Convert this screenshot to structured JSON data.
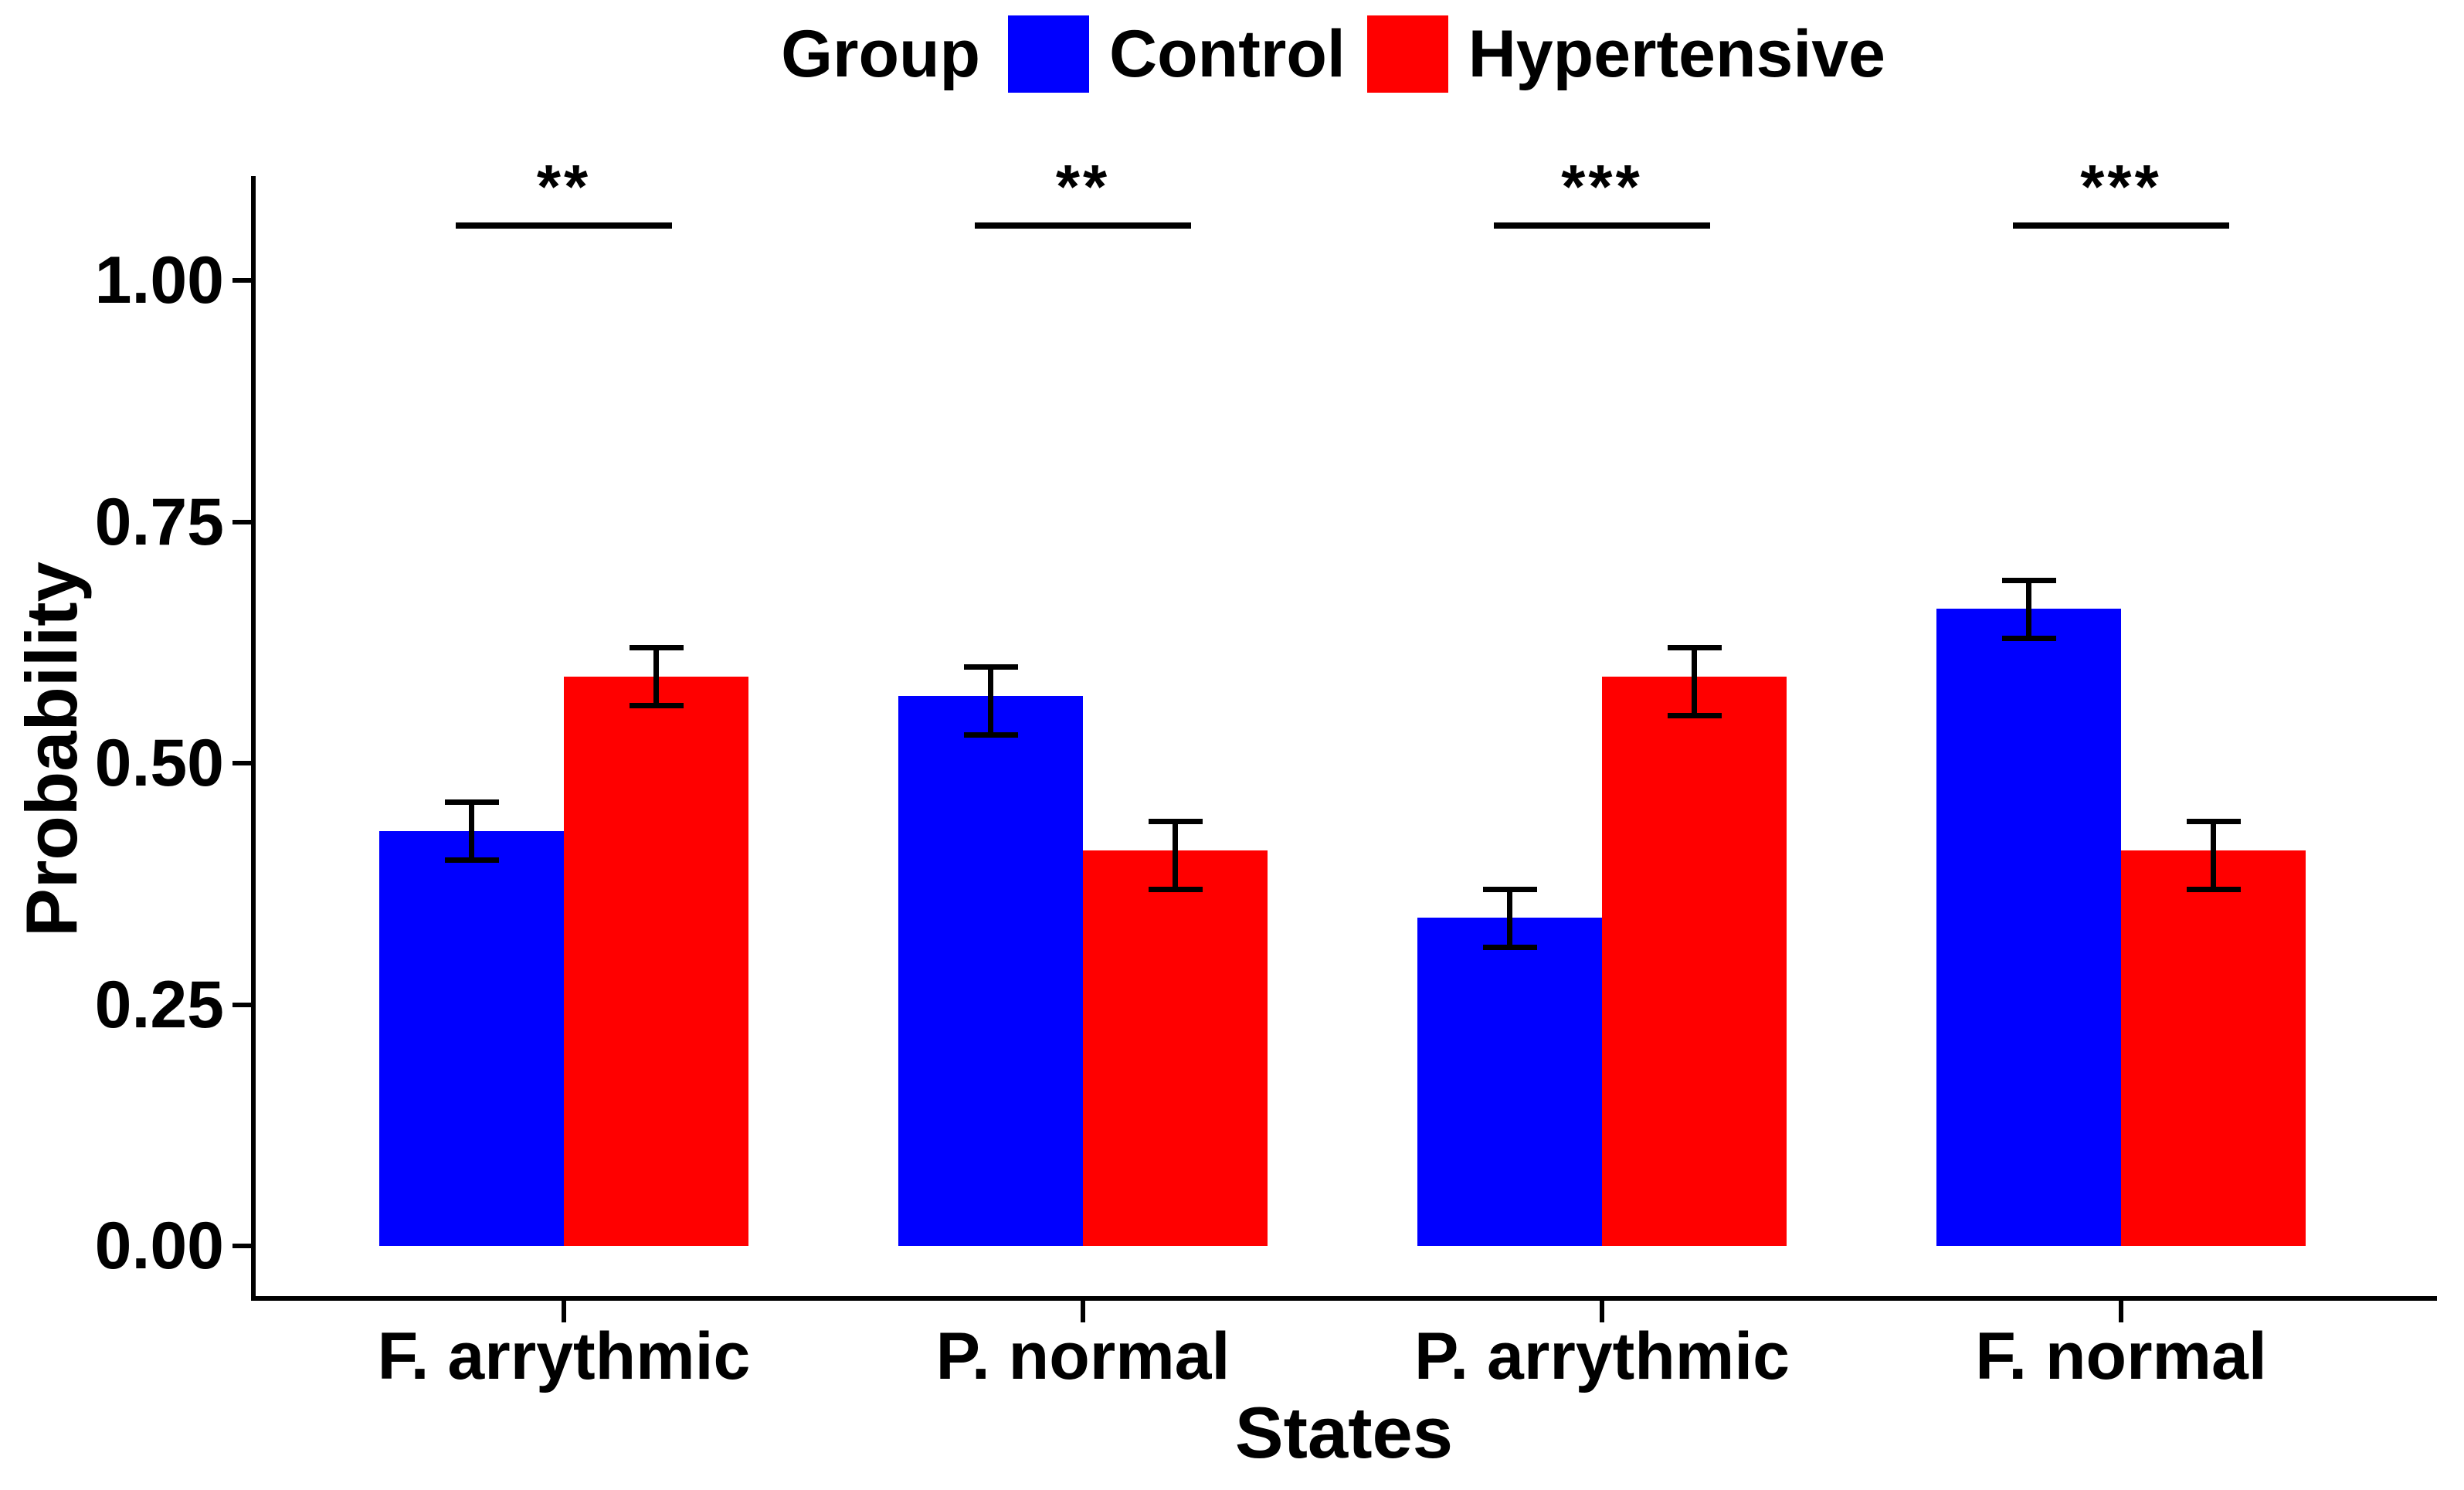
{
  "page": {
    "background": "#FFFFFF",
    "text_color": "#000000"
  },
  "chart_data": {
    "type": "bar",
    "title": "",
    "xlabel": "States",
    "ylabel": "Probability",
    "ylim": [
      0,
      1.09
    ],
    "yticks": [
      "0.00",
      "0.25",
      "0.50",
      "0.75",
      "1.00"
    ],
    "grid": false,
    "legend": {
      "position": "top",
      "title": "Group",
      "entries": [
        {
          "label": "Control",
          "color": "#0000FF"
        },
        {
          "label": "Hypertensive",
          "color": "#FF0000"
        }
      ]
    },
    "categories": [
      "F. arrythmic",
      "P. normal",
      "P. arrythmic",
      "F. normal"
    ],
    "series": [
      {
        "name": "Control",
        "color": "#0000FF",
        "values": [
          0.43,
          0.57,
          0.34,
          0.66
        ],
        "err_low": [
          0.4,
          0.53,
          0.31,
          0.63
        ],
        "err_high": [
          0.46,
          0.6,
          0.37,
          0.69
        ]
      },
      {
        "name": "Hypertensive",
        "color": "#FF0000",
        "values": [
          0.59,
          0.41,
          0.59,
          0.41
        ],
        "err_low": [
          0.56,
          0.37,
          0.55,
          0.37
        ],
        "err_high": [
          0.62,
          0.44,
          0.62,
          0.44
        ]
      }
    ],
    "significance": [
      "**",
      "**",
      "***",
      "***"
    ],
    "axis_color": "#000000"
  }
}
